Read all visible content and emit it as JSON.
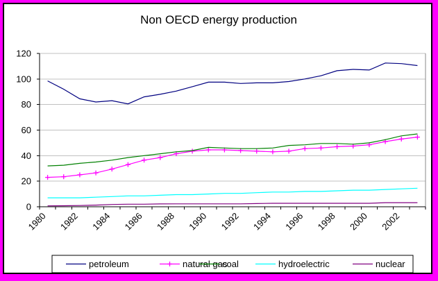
{
  "window": {
    "outer_border_color": "#FF00FF",
    "inner_border_color": "#000000",
    "background": "#FFFFFF"
  },
  "chart_data": {
    "type": "line",
    "title": "Non OECD energy production",
    "x": [
      1980,
      1981,
      1982,
      1983,
      1984,
      1985,
      1986,
      1987,
      1988,
      1989,
      1990,
      1991,
      1992,
      1993,
      1994,
      1995,
      1996,
      1997,
      1998,
      1999,
      2000,
      2001,
      2002,
      2003
    ],
    "x_tick_labels": [
      "1980",
      "1982",
      "1984",
      "1986",
      "1988",
      "1990",
      "1992",
      "1994",
      "1996",
      "1998",
      "2000",
      "2002"
    ],
    "yticks": [
      0,
      20,
      40,
      60,
      80,
      100,
      120
    ],
    "ylim": [
      0,
      120
    ],
    "grid": "horizontal",
    "gridline_color": "#C0C0C0",
    "axis_color": "#000000",
    "plot_right_border_color": "#888888",
    "legend_position": "bottom",
    "series": [
      {
        "name": "petroleum",
        "color": "#000080",
        "marker": "none",
        "values": [
          98.5,
          92,
          84.5,
          82,
          83,
          80.5,
          86,
          88,
          90.5,
          94,
          97.5,
          97.5,
          96.5,
          97,
          97,
          98,
          100,
          102.5,
          106.5,
          107.5,
          107,
          112.5,
          112,
          110.5
        ]
      },
      {
        "name": "natural gas",
        "color": "#FF00FF",
        "marker": "plus",
        "values": [
          23,
          23.5,
          25,
          26.5,
          29.5,
          33,
          36.5,
          38.5,
          41.5,
          43.5,
          44.5,
          44.5,
          44,
          43.5,
          43,
          43.5,
          45.5,
          46,
          47,
          47.5,
          48.5,
          51,
          53,
          54.5
        ]
      },
      {
        "name": "coal",
        "color": "#008000",
        "marker": "none",
        "values": [
          32,
          32.5,
          34,
          35,
          36.5,
          38.5,
          40,
          41.5,
          43,
          44,
          46.5,
          46,
          45.5,
          45.5,
          46,
          48,
          48.5,
          49.5,
          49.5,
          49,
          50,
          52.5,
          55.5,
          57
        ]
      },
      {
        "name": "hydroelectric",
        "color": "#00FFFF",
        "marker": "none",
        "values": [
          7,
          7,
          7,
          7.5,
          8,
          8.5,
          8.5,
          9,
          9.5,
          9.5,
          10,
          10.5,
          10.5,
          11,
          11.5,
          11.5,
          12,
          12,
          12.5,
          13,
          13,
          13.5,
          14,
          14.5
        ]
      },
      {
        "name": "nuclear",
        "color": "#800080",
        "marker": "none",
        "values": [
          0.7,
          0.8,
          1,
          1.3,
          1.8,
          2,
          2,
          2.2,
          2.3,
          2.3,
          2.3,
          2.3,
          2.3,
          2.5,
          2.7,
          2.7,
          2.7,
          2.7,
          2.7,
          2.7,
          2.7,
          3.2,
          3.2,
          3.2
        ]
      }
    ]
  }
}
